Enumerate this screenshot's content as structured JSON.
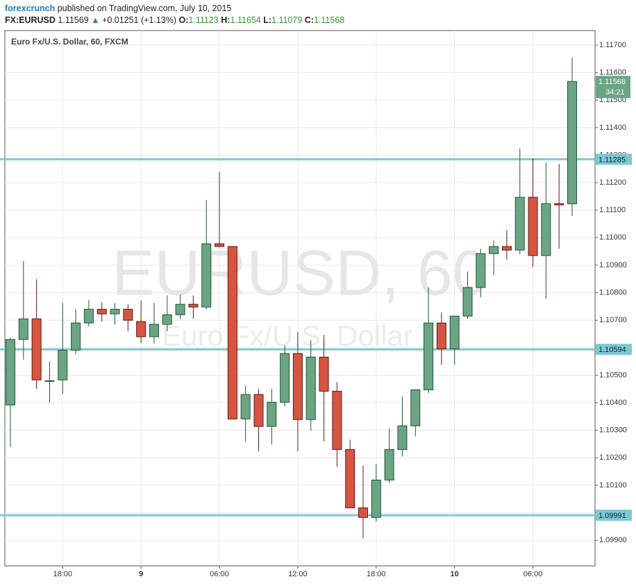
{
  "header": {
    "author": "forexcrunch",
    "published": "published on TradingView.com, July 10, 2015",
    "symbol": "FX:EURUSD",
    "price": "1.11569",
    "change": "+0.01251 (+1.13%)",
    "quote": [
      {
        "label": "O:",
        "value": "1.11123"
      },
      {
        "label": "H:",
        "value": "1.11654"
      },
      {
        "label": "L:",
        "value": "1.11079"
      },
      {
        "label": "C:",
        "value": "1.11568"
      }
    ]
  },
  "chart_data": {
    "type": "candlestick",
    "title": "Euro Fx/U.S. Dollar, 60, FXCM",
    "watermark": "EURUSD, 60",
    "watermark_subtitle": "Euro Fx/U.S. Dollar",
    "categories": [
      null,
      null,
      null,
      null,
      "18:00",
      null,
      null,
      null,
      null,
      null,
      "9",
      null,
      null,
      null,
      null,
      null,
      "06:00",
      null,
      null,
      null,
      null,
      null,
      "12:00",
      null,
      null,
      null,
      null,
      null,
      "18:00",
      null,
      null,
      null,
      null,
      null,
      "10",
      null,
      null,
      null,
      null,
      null,
      "06:00",
      null,
      null,
      null
    ],
    "open": [
      1.10392,
      1.1063,
      1.10705,
      1.1048,
      1.10483,
      1.10591,
      1.1069,
      1.1074,
      1.10723,
      1.1074,
      1.10695,
      1.1064,
      1.10685,
      1.1072,
      1.10758,
      1.10748,
      1.10978,
      1.10968,
      1.10341,
      1.1043,
      1.10314,
      1.10402,
      1.10579,
      1.10339,
      1.10566,
      1.10442,
      1.1023,
      1.10018,
      1.09983,
      1.10119,
      1.1023,
      1.10316,
      1.10447,
      1.1069,
      1.10596,
      1.10715,
      1.10819,
      1.10942,
      1.10968,
      1.10955,
      1.11147,
      1.10935,
      1.11124,
      1.11123
    ],
    "high": [
      1.10637,
      1.10915,
      1.10849,
      1.1055,
      1.10763,
      1.1074,
      1.10773,
      1.10765,
      1.10763,
      1.10758,
      1.10771,
      1.10763,
      1.1079,
      1.10793,
      1.1079,
      1.11137,
      1.11238,
      1.10968,
      1.10463,
      1.1045,
      1.1045,
      1.1061,
      1.10657,
      1.10627,
      1.10647,
      1.10475,
      1.10266,
      1.10172,
      1.10177,
      1.10306,
      1.10422,
      1.10447,
      1.10819,
      1.10728,
      1.10715,
      1.10877,
      1.1096,
      1.1099,
      1.11028,
      1.11324,
      1.11288,
      1.11273,
      1.11268,
      1.11654
    ],
    "low": [
      1.1024,
      1.10556,
      1.1045,
      1.104,
      1.10432,
      1.10576,
      1.10677,
      1.10695,
      1.10685,
      1.1066,
      1.10617,
      1.10615,
      1.1066,
      1.10705,
      1.10705,
      1.1074,
      1.10965,
      1.10341,
      1.10258,
      1.10223,
      1.10248,
      1.10387,
      1.10223,
      1.10298,
      1.1026,
      1.10167,
      1.10018,
      1.09907,
      1.09968,
      1.10109,
      1.10205,
      1.10278,
      1.10435,
      1.10538,
      1.10538,
      1.10705,
      1.10783,
      1.10864,
      1.1092,
      1.1094,
      1.10894,
      1.10778,
      1.1096,
      1.11079
    ],
    "close": [
      1.1063,
      1.10705,
      1.10483,
      1.1048,
      1.10591,
      1.1069,
      1.1074,
      1.10723,
      1.1074,
      1.107,
      1.1064,
      1.10685,
      1.1072,
      1.10758,
      1.10748,
      1.10978,
      1.10968,
      1.10341,
      1.1043,
      1.10314,
      1.10402,
      1.10579,
      1.10339,
      1.10566,
      1.10442,
      1.1023,
      1.10018,
      1.09983,
      1.10119,
      1.1023,
      1.10316,
      1.10447,
      1.1069,
      1.10596,
      1.10715,
      1.10819,
      1.10942,
      1.10968,
      1.10955,
      1.11147,
      1.10935,
      1.11124,
      1.11119,
      1.11568
    ],
    "up_color": "#6ba583",
    "down_color": "#d75442",
    "ylim": [
      1.09807,
      1.11753
    ],
    "yticks": [
      {
        "value": 1.117,
        "label": "1.11700"
      },
      {
        "value": 1.116,
        "label": "1.11600"
      },
      {
        "value": 1.115,
        "label": "1.11500"
      },
      {
        "value": 1.114,
        "label": "1.11400"
      },
      {
        "value": 1.113,
        "label": "1.11300"
      },
      {
        "value": 1.112,
        "label": "1.11200"
      },
      {
        "value": 1.111,
        "label": "1.11100"
      },
      {
        "value": 1.11,
        "label": "1.11000"
      },
      {
        "value": 1.109,
        "label": "1.10900"
      },
      {
        "value": 1.108,
        "label": "1.10800"
      },
      {
        "value": 1.107,
        "label": "1.10700"
      },
      {
        "value": 1.106,
        "label": "1.10600"
      },
      {
        "value": 1.105,
        "label": "1.10500"
      },
      {
        "value": 1.104,
        "label": "1.10400"
      },
      {
        "value": 1.103,
        "label": "1.10300"
      },
      {
        "value": 1.102,
        "label": "1.10200"
      },
      {
        "value": 1.101,
        "label": "1.10100"
      },
      {
        "value": 1.1,
        "label": "1.10000"
      },
      {
        "value": 1.099,
        "label": "1.09900"
      }
    ],
    "grid": true,
    "hlines": [
      1.11285,
      1.10594,
      1.09991
    ],
    "hline_color": "#7ec8d2",
    "last_price": 1.11568,
    "countdown": "34:21"
  }
}
